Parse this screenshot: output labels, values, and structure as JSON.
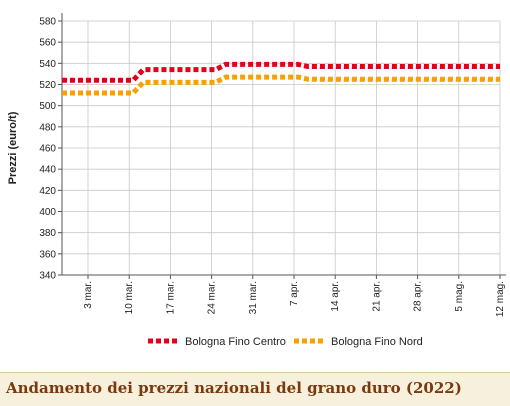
{
  "caption": "Andamento dei prezzi nazionali del grano duro (2022)",
  "chart_data": {
    "type": "line",
    "title": "",
    "ylabel": "Prezzi (euro/t)",
    "xlabel": "",
    "ylim": [
      340,
      580
    ],
    "yticks": [
      340,
      360,
      380,
      400,
      420,
      440,
      460,
      480,
      500,
      520,
      540,
      560,
      580
    ],
    "categories": [
      "3 mar.",
      "10 mar.",
      "17 mar.",
      "24 mar.",
      "31 mar.",
      "7 apr.",
      "14 apr.",
      "21 apr.",
      "28 apr.",
      "5 mag.",
      "12 mag."
    ],
    "series": [
      {
        "name": "Bologna Fino Centro",
        "color": "#e3001b",
        "values": [
          524,
          524,
          534,
          534,
          539,
          539,
          537,
          537,
          537,
          537,
          537
        ]
      },
      {
        "name": "Bologna Fino Nord",
        "color": "#f5a100",
        "values": [
          512,
          512,
          522,
          522,
          527,
          527,
          525,
          525,
          525,
          525,
          525
        ]
      }
    ],
    "grid": true,
    "legend_position": "bottom"
  }
}
